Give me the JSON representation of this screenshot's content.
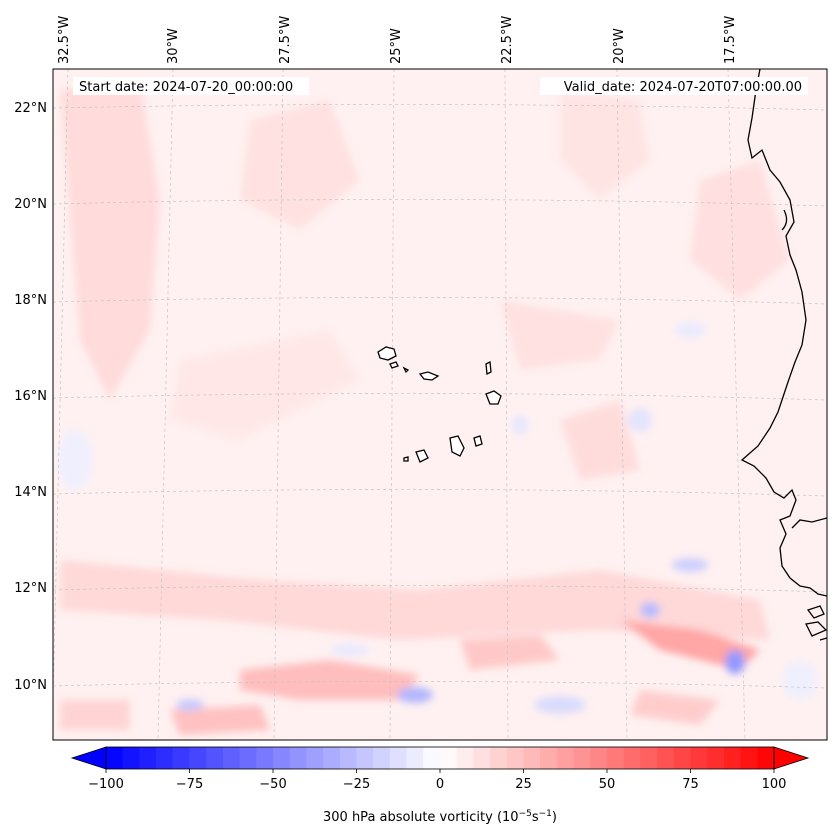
{
  "header": {
    "start_date": "Start date: 2024-07-20_00:00:00",
    "valid_date": "Valid_date: 2024-07-20T07:00:00.00"
  },
  "axes": {
    "lon_labels": [
      "32.5°W",
      "30°W",
      "27.5°W",
      "25°W",
      "22.5°W",
      "20°W",
      "17.5°W"
    ],
    "lat_labels": [
      "22°N",
      "20°N",
      "18°N",
      "16°N",
      "14°N",
      "12°N",
      "10°N"
    ]
  },
  "colorbar": {
    "ticks": [
      "−100",
      "−75",
      "−50",
      "−25",
      "0",
      "25",
      "50",
      "75",
      "100"
    ],
    "title_main": "300 hPa absolute vorticity (10",
    "title_exp1": "−5",
    "title_mid": "s",
    "title_exp2": "−1",
    "title_end": ")",
    "min": -100,
    "max": 100,
    "levels": 41,
    "cmap": "bwr",
    "extend": "both"
  },
  "colors": {
    "negative_extreme": "#0000ff",
    "neutral": "#ffffff",
    "positive_extreme": "#ff0000",
    "background_tint": "#fff0f0",
    "coastline": "#000000",
    "grid": "#bbbbbb"
  },
  "map": {
    "features": [
      "coastline-west-africa",
      "cape-verde-islands",
      "vorticity-field"
    ]
  }
}
